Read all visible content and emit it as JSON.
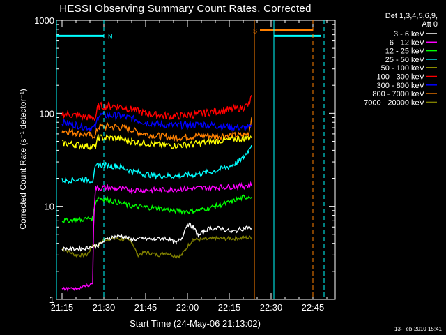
{
  "chart_data": {
    "type": "line",
    "title": "HESSI Observing Summary Count Rates, Corrected",
    "xlabel": "Start Time (24-May-06 21:13:02)",
    "ylabel": "Corrected Count Rate (s⁻¹ detector⁻¹)",
    "yscale": "log",
    "ylim": [
      1,
      1000
    ],
    "xlim": [
      "21:13",
      "22:53"
    ],
    "x_ticks": [
      "21:15",
      "21:30",
      "21:45",
      "22:00",
      "22:15",
      "22:30",
      "22:45"
    ],
    "y_ticks": [
      "1",
      "10",
      "100",
      "1000"
    ],
    "detector_info": [
      "Det 1,3,4,5,6,9,",
      "Att 0"
    ],
    "footer": "13-Feb-2010 15:41",
    "legend_position": "right",
    "series": [
      {
        "name": "3 - 6 keV",
        "color": "#ffffff",
        "x": [
          "21:15",
          "21:22",
          "21:24",
          "21:28",
          "21:32",
          "21:36",
          "21:40",
          "21:44",
          "21:48",
          "21:52",
          "21:56",
          "21:58",
          "22:00",
          "22:02",
          "22:04",
          "22:06",
          "22:08",
          "22:12",
          "22:16",
          "22:20",
          "22:22",
          "22:23"
        ],
        "values": [
          3.5,
          3.5,
          3.6,
          3.8,
          4.6,
          4.8,
          4.4,
          4.5,
          4.4,
          4.6,
          4.0,
          4.6,
          6.5,
          6.0,
          4.8,
          5.4,
          5.8,
          5.8,
          5.3,
          5.8,
          6.0,
          5.5
        ]
      },
      {
        "name": "6 - 12 keV",
        "color": "#ff00ff",
        "x": [
          "21:15",
          "21:20",
          "21:24",
          "21:26",
          "21:27",
          "21:28",
          "21:30",
          "21:40",
          "21:50",
          "22:00",
          "22:10",
          "22:20",
          "22:23"
        ],
        "values": [
          1.3,
          1.3,
          1.4,
          1.5,
          16.0,
          15.5,
          16.0,
          15.0,
          15.0,
          15.5,
          16.0,
          16.5,
          17.0
        ]
      },
      {
        "name": "12 - 25 keV",
        "color": "#00ff00",
        "x": [
          "21:15",
          "21:22",
          "21:26",
          "21:27",
          "21:28",
          "21:30",
          "21:40",
          "21:45",
          "21:50",
          "21:55",
          "22:00",
          "22:05",
          "22:10",
          "22:15",
          "22:20",
          "22:23"
        ],
        "values": [
          7.0,
          7.2,
          7.5,
          11.0,
          12.5,
          12.0,
          10.0,
          9.8,
          9.5,
          9.0,
          8.8,
          9.2,
          10.0,
          11.0,
          12.5,
          13.0
        ]
      },
      {
        "name": "25 - 50 keV",
        "color": "#00ffff",
        "x": [
          "21:15",
          "21:22",
          "21:26",
          "21:27",
          "21:28",
          "21:35",
          "21:40",
          "21:45",
          "21:50",
          "21:55",
          "22:00",
          "22:05",
          "22:10",
          "22:15",
          "22:18",
          "22:20",
          "22:22",
          "22:23"
        ],
        "values": [
          19.0,
          19.5,
          19.0,
          26.0,
          28.0,
          27.0,
          24.0,
          22.0,
          21.5,
          21.0,
          21.5,
          22.5,
          24.0,
          27.0,
          30.0,
          33.0,
          40.0,
          48.0
        ]
      },
      {
        "name": "50 - 100 keV",
        "color": "#ffff00",
        "x": [
          "21:15",
          "21:20",
          "21:25",
          "21:27",
          "21:28",
          "21:35",
          "21:40",
          "21:45",
          "21:50",
          "21:55",
          "22:00",
          "22:05",
          "22:10",
          "22:15",
          "22:20",
          "22:23"
        ],
        "values": [
          48.0,
          46.0,
          44.0,
          44.0,
          55.0,
          54.0,
          50.0,
          48.0,
          46.0,
          45.0,
          46.0,
          48.0,
          50.0,
          52.0,
          54.0,
          56.0
        ]
      },
      {
        "name": "100 - 300 keV",
        "color": "#ff0000",
        "x": [
          "21:15",
          "21:20",
          "21:25",
          "21:27",
          "21:28",
          "21:35",
          "21:40",
          "21:45",
          "21:50",
          "21:55",
          "22:00",
          "22:05",
          "22:10",
          "22:15",
          "22:20",
          "22:22",
          "22:23"
        ],
        "values": [
          100.0,
          95.0,
          90.0,
          90.0,
          120.0,
          120.0,
          110.0,
          100.0,
          95.0,
          93.0,
          95.0,
          100.0,
          105.0,
          110.0,
          115.0,
          125.0,
          150.0
        ]
      },
      {
        "name": "300 - 800 keV",
        "color": "#0000ff",
        "x": [
          "21:15",
          "21:20",
          "21:25",
          "21:27",
          "21:28",
          "21:35",
          "21:40",
          "21:45",
          "21:50",
          "21:55",
          "22:00",
          "22:05",
          "22:10",
          "22:15",
          "22:20",
          "22:23"
        ],
        "values": [
          80.0,
          75.0,
          70.0,
          70.0,
          95.0,
          95.0,
          88.0,
          80.0,
          76.0,
          74.0,
          75.0,
          76.0,
          74.0,
          72.0,
          70.0,
          70.0
        ]
      },
      {
        "name": "800 - 7000 keV",
        "color": "#ff8000",
        "x": [
          "21:15",
          "21:20",
          "21:25",
          "21:27",
          "21:28",
          "21:35",
          "21:40",
          "21:45",
          "21:50",
          "21:55",
          "22:00",
          "22:05",
          "22:10",
          "22:15",
          "22:20",
          "22:22",
          "22:23"
        ],
        "values": [
          66.0,
          62.0,
          58.0,
          58.0,
          72.0,
          72.0,
          66.0,
          60.0,
          57.0,
          55.0,
          56.0,
          58.0,
          57.0,
          58.0,
          58.0,
          60.0,
          90.0
        ]
      },
      {
        "name": "7000 - 20000 keV",
        "color": "#808000",
        "x": [
          "21:15",
          "21:20",
          "21:24",
          "21:26",
          "21:28",
          "21:30",
          "21:35",
          "21:40",
          "21:42",
          "21:45",
          "21:50",
          "21:52",
          "21:56",
          "21:58",
          "22:02",
          "22:06",
          "22:10",
          "22:15",
          "22:20",
          "22:23"
        ],
        "values": [
          3.5,
          3.0,
          3.0,
          3.8,
          3.8,
          4.4,
          4.5,
          4.2,
          3.0,
          3.2,
          3.0,
          3.2,
          2.9,
          3.0,
          4.4,
          4.4,
          4.5,
          4.5,
          4.6,
          4.6
        ]
      }
    ],
    "annotations": [
      {
        "type": "flag",
        "label": "N",
        "color": "#00ffff",
        "x_start": "21:13",
        "x_end": "21:30",
        "y": 680
      },
      {
        "type": "flag",
        "label": "S",
        "color": "#ff8000",
        "x_start": "22:26",
        "x_end": "22:45",
        "y": 780
      },
      {
        "type": "flag",
        "label": "",
        "color": "#00ffff",
        "x_start": "22:31",
        "x_end": "22:48",
        "y": 680
      },
      {
        "type": "vline",
        "style": "dashed",
        "color": "#00ffff",
        "x": "21:30"
      },
      {
        "type": "vline",
        "style": "dashed",
        "color": "#00ffff",
        "x": "22:49"
      },
      {
        "type": "vline",
        "style": "dashed",
        "color": "#ff8000",
        "x": "22:45"
      },
      {
        "type": "vline",
        "style": "solid",
        "color": "#ff8000",
        "x": "22:24"
      },
      {
        "type": "vline",
        "style": "solid",
        "color": "#00ffff",
        "x": "22:31"
      },
      {
        "type": "vline",
        "style": "solid",
        "color": "#00ffff",
        "x": "21:13"
      }
    ],
    "grid": false
  }
}
